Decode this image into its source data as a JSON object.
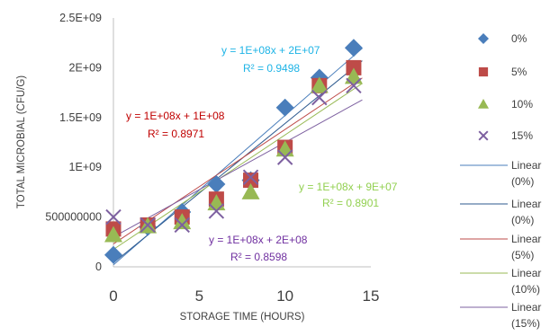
{
  "chart_data": {
    "type": "scatter",
    "xlabel": "STORAGE TIME (HOURS)",
    "ylabel": "TOTAL MICROBIAL (CFU/G)",
    "xlim": [
      0,
      15
    ],
    "ylim": [
      0,
      2500000000
    ],
    "x_ticks": [
      "0",
      "5",
      "10",
      "15"
    ],
    "y_ticks": [
      "0",
      "500000000",
      "1E+09",
      "1.5E+09",
      "2E+09",
      "2.5E+09"
    ],
    "grid": false,
    "legend_position": "right",
    "series": [
      {
        "name": "0%",
        "marker": "diamond",
        "color": "#4a7ebb",
        "x": [
          0,
          2,
          4,
          6,
          8,
          10,
          12,
          14
        ],
        "y": [
          120000000,
          400000000,
          550000000,
          830000000,
          870000000,
          1600000000,
          1900000000,
          2200000000
        ]
      },
      {
        "name": "5%",
        "marker": "square",
        "color": "#be4b48",
        "x": [
          0,
          2,
          4,
          6,
          8,
          10,
          12,
          14
        ],
        "y": [
          380000000,
          420000000,
          500000000,
          680000000,
          870000000,
          1200000000,
          1820000000,
          2000000000
        ]
      },
      {
        "name": "10%",
        "marker": "triangle",
        "color": "#98b954",
        "x": [
          0,
          2,
          4,
          6,
          8,
          10,
          12,
          14
        ],
        "y": [
          320000000,
          410000000,
          450000000,
          640000000,
          750000000,
          1180000000,
          1820000000,
          1910000000
        ]
      },
      {
        "name": "15%",
        "marker": "x",
        "color": "#7d60a0",
        "x": [
          0,
          2,
          4,
          6,
          8,
          10,
          12,
          14
        ],
        "y": [
          500000000,
          420000000,
          420000000,
          560000000,
          900000000,
          1100000000,
          1700000000,
          1820000000
        ]
      }
    ],
    "trendlines": [
      {
        "legend": "Linear (0%)",
        "color": "#4a7ebb",
        "slope": 150000000,
        "intercept": 20000000
      },
      {
        "legend": "Linear (0%)",
        "color": "#2e5a8f",
        "slope": 140000000,
        "intercept": 40000000
      },
      {
        "legend": "Linear (5%)",
        "color": "#be4b48",
        "slope": 115000000,
        "intercept": 230000000
      },
      {
        "legend": "Linear (10%)",
        "color": "#98b954",
        "slope": 115000000,
        "intercept": 175000000
      },
      {
        "legend": "Linear (15%)",
        "color": "#7d60a0",
        "slope": 95000000,
        "intercept": 300000000
      }
    ],
    "annotations": [
      {
        "eq": "y = 1E+08x + 2E+07",
        "r2": "R² = 0.9498",
        "color": "#1fb4e6"
      },
      {
        "eq": "y = 1E+08x + 1E+08",
        "r2": "R² = 0.8971",
        "color": "#c00000"
      },
      {
        "eq": "y = 1E+08x + 9E+07",
        "r2": "R² = 0.8901",
        "color": "#92d050"
      },
      {
        "eq": "y = 1E+08x + 2E+08",
        "r2": "R² = 0.8598",
        "color": "#7030a0"
      }
    ]
  }
}
